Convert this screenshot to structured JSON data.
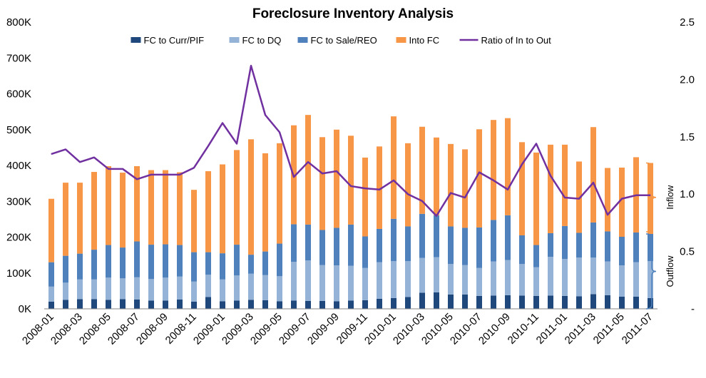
{
  "chart_data": {
    "type": "bar",
    "stacked": true,
    "title": "Foreclosure Inventory Analysis",
    "colors": {
      "fc_to_curr_pif": "#1f497d",
      "fc_to_dq": "#95b3d7",
      "fc_to_sale_reo": "#4f81bd",
      "into_fc": "#f79646",
      "ratio": "#7030a0",
      "outflow_brace": "#4f81bd",
      "inflow_brace": "#f79646"
    },
    "categories": [
      "2008-01",
      "2008-02",
      "2008-03",
      "2008-04",
      "2008-05",
      "2008-06",
      "2008-07",
      "2008-08",
      "2008-09",
      "2008-10",
      "2008-11",
      "2008-12",
      "2009-01",
      "2009-02",
      "2009-03",
      "2009-04",
      "2009-05",
      "2009-06",
      "2009-07",
      "2009-08",
      "2009-09",
      "2009-10",
      "2009-11",
      "2009-12",
      "2010-01",
      "2010-02",
      "2010-03",
      "2010-04",
      "2010-05",
      "2010-06",
      "2010-07",
      "2010-08",
      "2010-09",
      "2010-10",
      "2010-11",
      "2010-12",
      "2011-01",
      "2011-02",
      "2011-03",
      "2011-04",
      "2011-05",
      "2011-06",
      "2011-07"
    ],
    "x_tick_labels": [
      "2008-01",
      "2008-03",
      "2008-05",
      "2008-07",
      "2008-09",
      "2008-11",
      "2009-01",
      "2009-03",
      "2009-05",
      "2009-07",
      "2009-09",
      "2009-11",
      "2010-01",
      "2010-03",
      "2010-05",
      "2010-07",
      "2010-09",
      "2010-11",
      "2011-01",
      "2011-03",
      "2011-05",
      "2011-07"
    ],
    "y_left": {
      "min": 0,
      "max": 800000,
      "ticks": [
        "0K",
        "100K",
        "200K",
        "300K",
        "400K",
        "500K",
        "600K",
        "700K",
        "800K"
      ]
    },
    "y_right": {
      "min": 0,
      "max": 2.5,
      "ticks": [
        "-",
        "0.5",
        "1.0",
        "1.5",
        "2.0",
        "2.5"
      ]
    },
    "series": [
      {
        "name": "FC to Curr/PIF",
        "key": "fc_to_curr_pif",
        "axis": "left",
        "values": [
          20000,
          25000,
          27000,
          27000,
          25000,
          27000,
          26000,
          23000,
          23000,
          26000,
          20000,
          33000,
          21000,
          23000,
          25000,
          24000,
          21000,
          23000,
          22000,
          22000,
          21000,
          23000,
          24000,
          28000,
          30000,
          33000,
          45000,
          46000,
          40000,
          40000,
          36000,
          37000,
          38000,
          37000,
          36000,
          37000,
          36000,
          35000,
          41000,
          38000,
          34000,
          34000,
          30000
        ]
      },
      {
        "name": "FC to DQ",
        "key": "fc_to_dq",
        "axis": "left",
        "values": [
          42000,
          48000,
          55000,
          55000,
          62000,
          58000,
          62000,
          60000,
          64000,
          64000,
          56000,
          62000,
          61000,
          70000,
          73000,
          70000,
          70000,
          108000,
          113000,
          100000,
          100000,
          97000,
          90000,
          102000,
          103000,
          100000,
          97000,
          98000,
          85000,
          82000,
          78000,
          95000,
          98000,
          88000,
          80000,
          108000,
          103000,
          108000,
          102000,
          94000,
          87000,
          96000,
          103000
        ]
      },
      {
        "name": "FC to Sale/REO",
        "key": "fc_to_sale_reo",
        "axis": "left",
        "values": [
          68000,
          75000,
          72000,
          83000,
          91000,
          86000,
          100000,
          96000,
          93000,
          88000,
          82000,
          63000,
          73000,
          86000,
          53000,
          66000,
          91000,
          105000,
          100000,
          98000,
          105000,
          115000,
          88000,
          93000,
          118000,
          97000,
          123000,
          117000,
          105000,
          104000,
          113000,
          116000,
          125000,
          80000,
          62000,
          66000,
          92000,
          69000,
          98000,
          84000,
          80000,
          83000,
          76000
        ]
      },
      {
        "name": "Into FC",
        "key": "into_fc",
        "axis": "left",
        "values": [
          177000,
          204000,
          198000,
          217000,
          220000,
          209000,
          210000,
          208000,
          207000,
          203000,
          174000,
          226000,
          248000,
          264000,
          322000,
          274000,
          280000,
          276000,
          306000,
          259000,
          274000,
          248000,
          220000,
          230000,
          286000,
          232000,
          243000,
          217000,
          230000,
          219000,
          274000,
          279000,
          271000,
          260000,
          258000,
          247000,
          227000,
          199000,
          266000,
          177000,
          193000,
          210000,
          198000
        ]
      },
      {
        "name": "Ratio of In to Out",
        "key": "ratio",
        "axis": "right",
        "type": "line",
        "values": [
          1.35,
          1.39,
          1.28,
          1.32,
          1.22,
          1.22,
          1.13,
          1.17,
          1.17,
          1.17,
          1.23,
          1.42,
          1.62,
          1.44,
          2.12,
          1.69,
          1.54,
          1.15,
          1.28,
          1.18,
          1.2,
          1.07,
          1.05,
          1.04,
          1.12,
          1.0,
          0.94,
          0.81,
          1.01,
          0.97,
          1.19,
          1.12,
          1.04,
          1.26,
          1.44,
          1.16,
          0.97,
          0.96,
          1.1,
          0.82,
          0.96,
          0.99,
          0.99
        ]
      }
    ],
    "legend": [
      "FC to Curr/PIF",
      "FC to DQ",
      "FC to Sale/REO",
      "Into FC",
      "Ratio of In to Out"
    ],
    "legend_position": "top-center",
    "annotations": {
      "inflow": "Inflow",
      "outflow": "Outflow"
    }
  }
}
